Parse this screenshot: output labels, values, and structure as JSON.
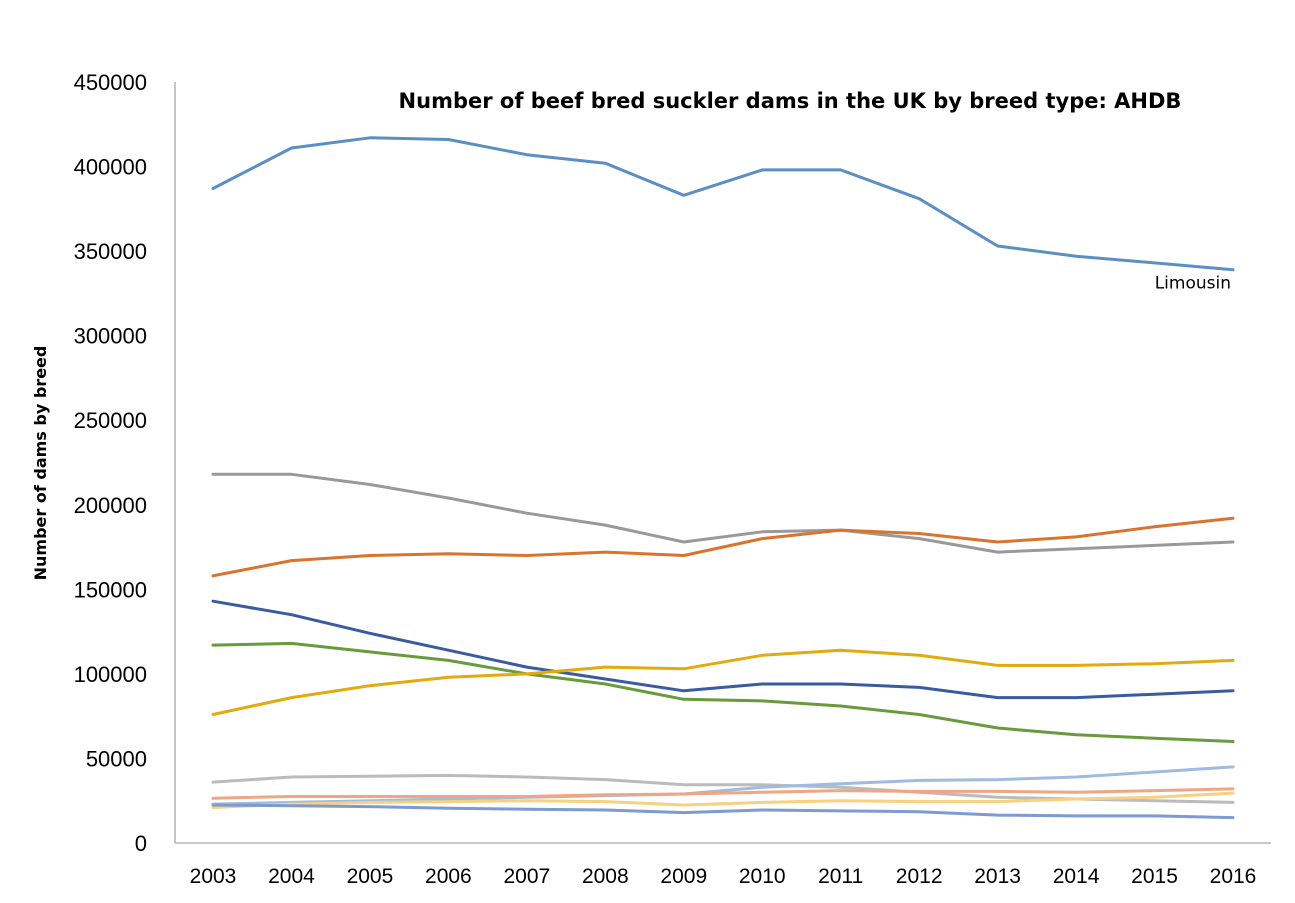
{
  "chart_data": {
    "type": "line",
    "title": "Number of beef bred suckler dams in the UK by breed type: AHDB",
    "xlabel": "",
    "ylabel": "Number of dams by breed",
    "x": [
      "2003",
      "2004",
      "2005",
      "2006",
      "2007",
      "2008",
      "2009",
      "2010",
      "2011",
      "2012",
      "2013",
      "2014",
      "2015",
      "2016"
    ],
    "yticks": [
      "0",
      "50000",
      "100000",
      "150000",
      "200000",
      "250000",
      "300000",
      "350000",
      "400000",
      "450000"
    ],
    "ylim": [
      0,
      450000
    ],
    "grid": false,
    "legend": "none",
    "annotations": [
      {
        "text": "Limousin",
        "series_index": 0
      }
    ],
    "series": [
      {
        "color": "#5B8FC4",
        "values": [
          387000,
          411000,
          417000,
          416000,
          407000,
          402000,
          383000,
          398000,
          398000,
          381000,
          353000,
          347000,
          343000,
          339000
        ]
      },
      {
        "color": "#999999",
        "values": [
          218000,
          218000,
          212000,
          204000,
          195000,
          188000,
          178000,
          184000,
          185000,
          180000,
          172000,
          174000,
          176000,
          178000
        ]
      },
      {
        "color": "#D9732E",
        "values": [
          158000,
          167000,
          170000,
          171000,
          170000,
          172000,
          170000,
          180000,
          185000,
          183000,
          178000,
          181000,
          187000,
          192000
        ]
      },
      {
        "color": "#3A5BA0",
        "values": [
          143000,
          135000,
          124000,
          114000,
          104000,
          97000,
          90000,
          94000,
          94000,
          92000,
          86000,
          86000,
          88000,
          90000
        ]
      },
      {
        "color": "#6A9A3E",
        "values": [
          117000,
          118000,
          113000,
          108000,
          100000,
          94000,
          85000,
          84000,
          81000,
          76000,
          68000,
          64000,
          62000,
          60000
        ]
      },
      {
        "color": "#E3AA0E",
        "values": [
          76000,
          86000,
          93000,
          98000,
          100000,
          104000,
          103000,
          111000,
          114000,
          111000,
          105000,
          105000,
          106000,
          108000
        ]
      },
      {
        "color": "#BBBBBB",
        "values": [
          36000,
          39000,
          39500,
          40000,
          39000,
          37500,
          34500,
          34500,
          33000,
          30000,
          27000,
          26000,
          25000,
          24000
        ]
      },
      {
        "color": "#9FBBE0",
        "values": [
          23000,
          24000,
          25000,
          26000,
          27000,
          28000,
          29000,
          33000,
          35000,
          37000,
          37500,
          39000,
          42000,
          45000
        ]
      },
      {
        "color": "#F0A583",
        "values": [
          26500,
          27500,
          27500,
          27500,
          27500,
          28500,
          29000,
          30000,
          31000,
          30500,
          30500,
          30000,
          31000,
          32000
        ]
      },
      {
        "color": "#F7D080",
        "values": [
          21000,
          23000,
          24000,
          24500,
          25000,
          24500,
          22500,
          24000,
          25000,
          24500,
          24500,
          26000,
          27000,
          29500
        ]
      },
      {
        "color": "#7D9AD2",
        "values": [
          22500,
          22000,
          21500,
          20500,
          20000,
          19500,
          18000,
          19500,
          19000,
          18500,
          16500,
          16000,
          16000,
          15000
        ]
      }
    ]
  }
}
